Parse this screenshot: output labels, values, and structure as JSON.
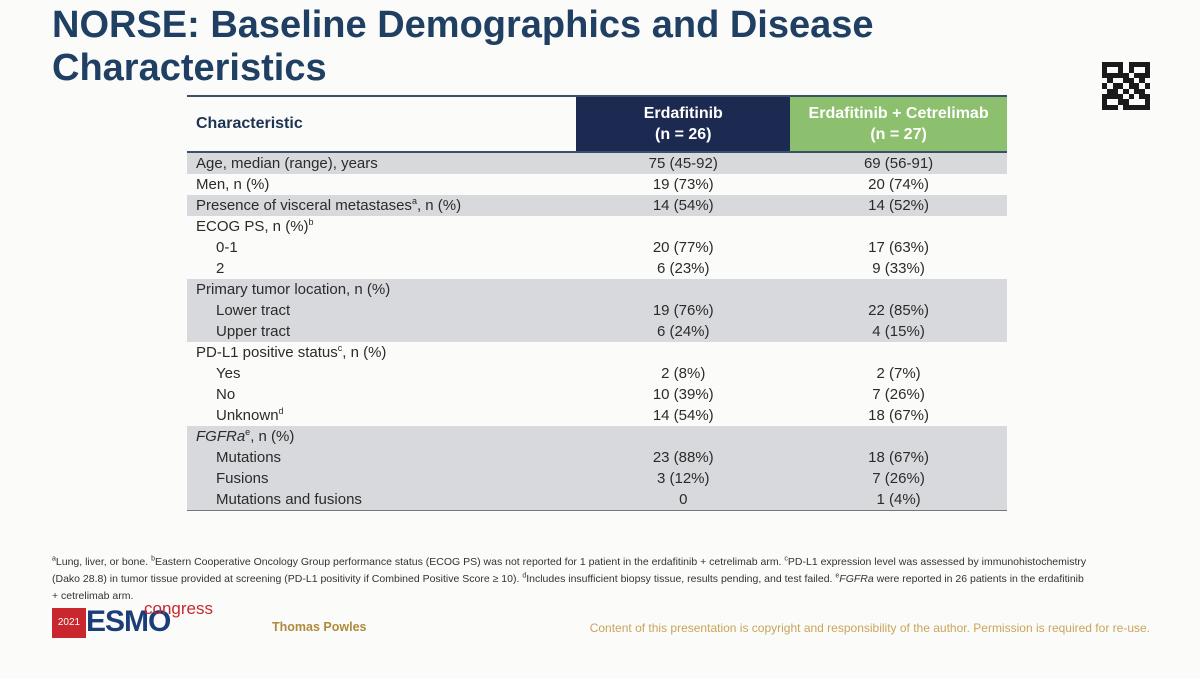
{
  "title": {
    "line1": "NORSE: Baseline Demographics and Disease",
    "line2": "Characteristics"
  },
  "table": {
    "header": {
      "characteristic": "Characteristic",
      "col2_line1": "Erdafitinib",
      "col2_line2": "(n = 26)",
      "col3_line1": "Erdafitinib + Cetrelimab",
      "col3_line2": "(n = 27)"
    },
    "age": {
      "label": "Age, median (range), years",
      "v1": "75 (45-92)",
      "v2": "69 (56-91)"
    },
    "men": {
      "label": "Men, n (%)",
      "v1": "19 (73%)",
      "v2": "20 (74%)"
    },
    "visceral": {
      "label": "Presence of visceral metastases",
      "sup": "a",
      "suffix": ", n (%)",
      "v1": "14 (54%)",
      "v2": "14 (52%)"
    },
    "ecog": {
      "label": "ECOG PS, n (%)",
      "sup": "b",
      "r1": {
        "label": "0-1",
        "v1": "20 (77%)",
        "v2": "17 (63%)"
      },
      "r2": {
        "label": "2",
        "v1": "6 (23%)",
        "v2": "9 (33%)"
      }
    },
    "tumor": {
      "label": "Primary tumor location, n (%)",
      "r1": {
        "label": "Lower tract",
        "v1": "19 (76%)",
        "v2": "22 (85%)"
      },
      "r2": {
        "label": "Upper tract",
        "v1": "6 (24%)",
        "v2": "4 (15%)"
      }
    },
    "pdl1": {
      "label": "PD-L1 positive status",
      "sup": "c",
      "suffix": ", n (%)",
      "r1": {
        "label": "Yes",
        "v1": "2 (8%)",
        "v2": "2 (7%)"
      },
      "r2": {
        "label": "No",
        "v1": "10 (39%)",
        "v2": "7 (26%)"
      },
      "r3": {
        "label": "Unknown",
        "sup": "d",
        "v1": "14 (54%)",
        "v2": "18 (67%)"
      }
    },
    "fgfr": {
      "label": "FGFRa",
      "sup": "e",
      "suffix": ", n (%)",
      "r1": {
        "label": "Mutations",
        "v1": "23 (88%)",
        "v2": "18 (67%)"
      },
      "r2": {
        "label": "Fusions",
        "v1": "3 (12%)",
        "v2": "7 (26%)"
      },
      "r3": {
        "label": "Mutations and fusions",
        "v1": "0",
        "v2": "1 (4%)"
      }
    }
  },
  "footnotes": {
    "a_mark": "a",
    "a_text": "Lung, liver, or bone. ",
    "b_mark": "b",
    "b_text": "Eastern Cooperative Oncology Group performance status (ECOG PS) was not reported for 1 patient in the erdafitinib + cetrelimab arm. ",
    "c_mark": "c",
    "c_text": "PD-L1 expression level was assessed by immunohistochemistry (Dako 28.8) in tumor tissue provided at screening (PD-L1 positivity if Combined Positive Score ≥ 10). ",
    "d_mark": "d",
    "d_text": "Includes insufficient biopsy tissue, results pending, and test failed. ",
    "e_mark": "e",
    "e_italic": "FGFRa",
    "e_text": " were reported in 26 patients in the erdafitinib + cetrelimab arm."
  },
  "footer": {
    "logo_year": "2021",
    "logo_name": "ESMO",
    "logo_congress": "congress",
    "author": "Thomas Powles",
    "copyright": "Content of this presentation is copyright and responsibility of the author. Permission is required for re-use."
  },
  "colors": {
    "title": "#1f3f63",
    "header_erdafitinib": "#1c2a52",
    "header_combo": "#8dc06e",
    "row_shade": "#d8d9dd"
  }
}
